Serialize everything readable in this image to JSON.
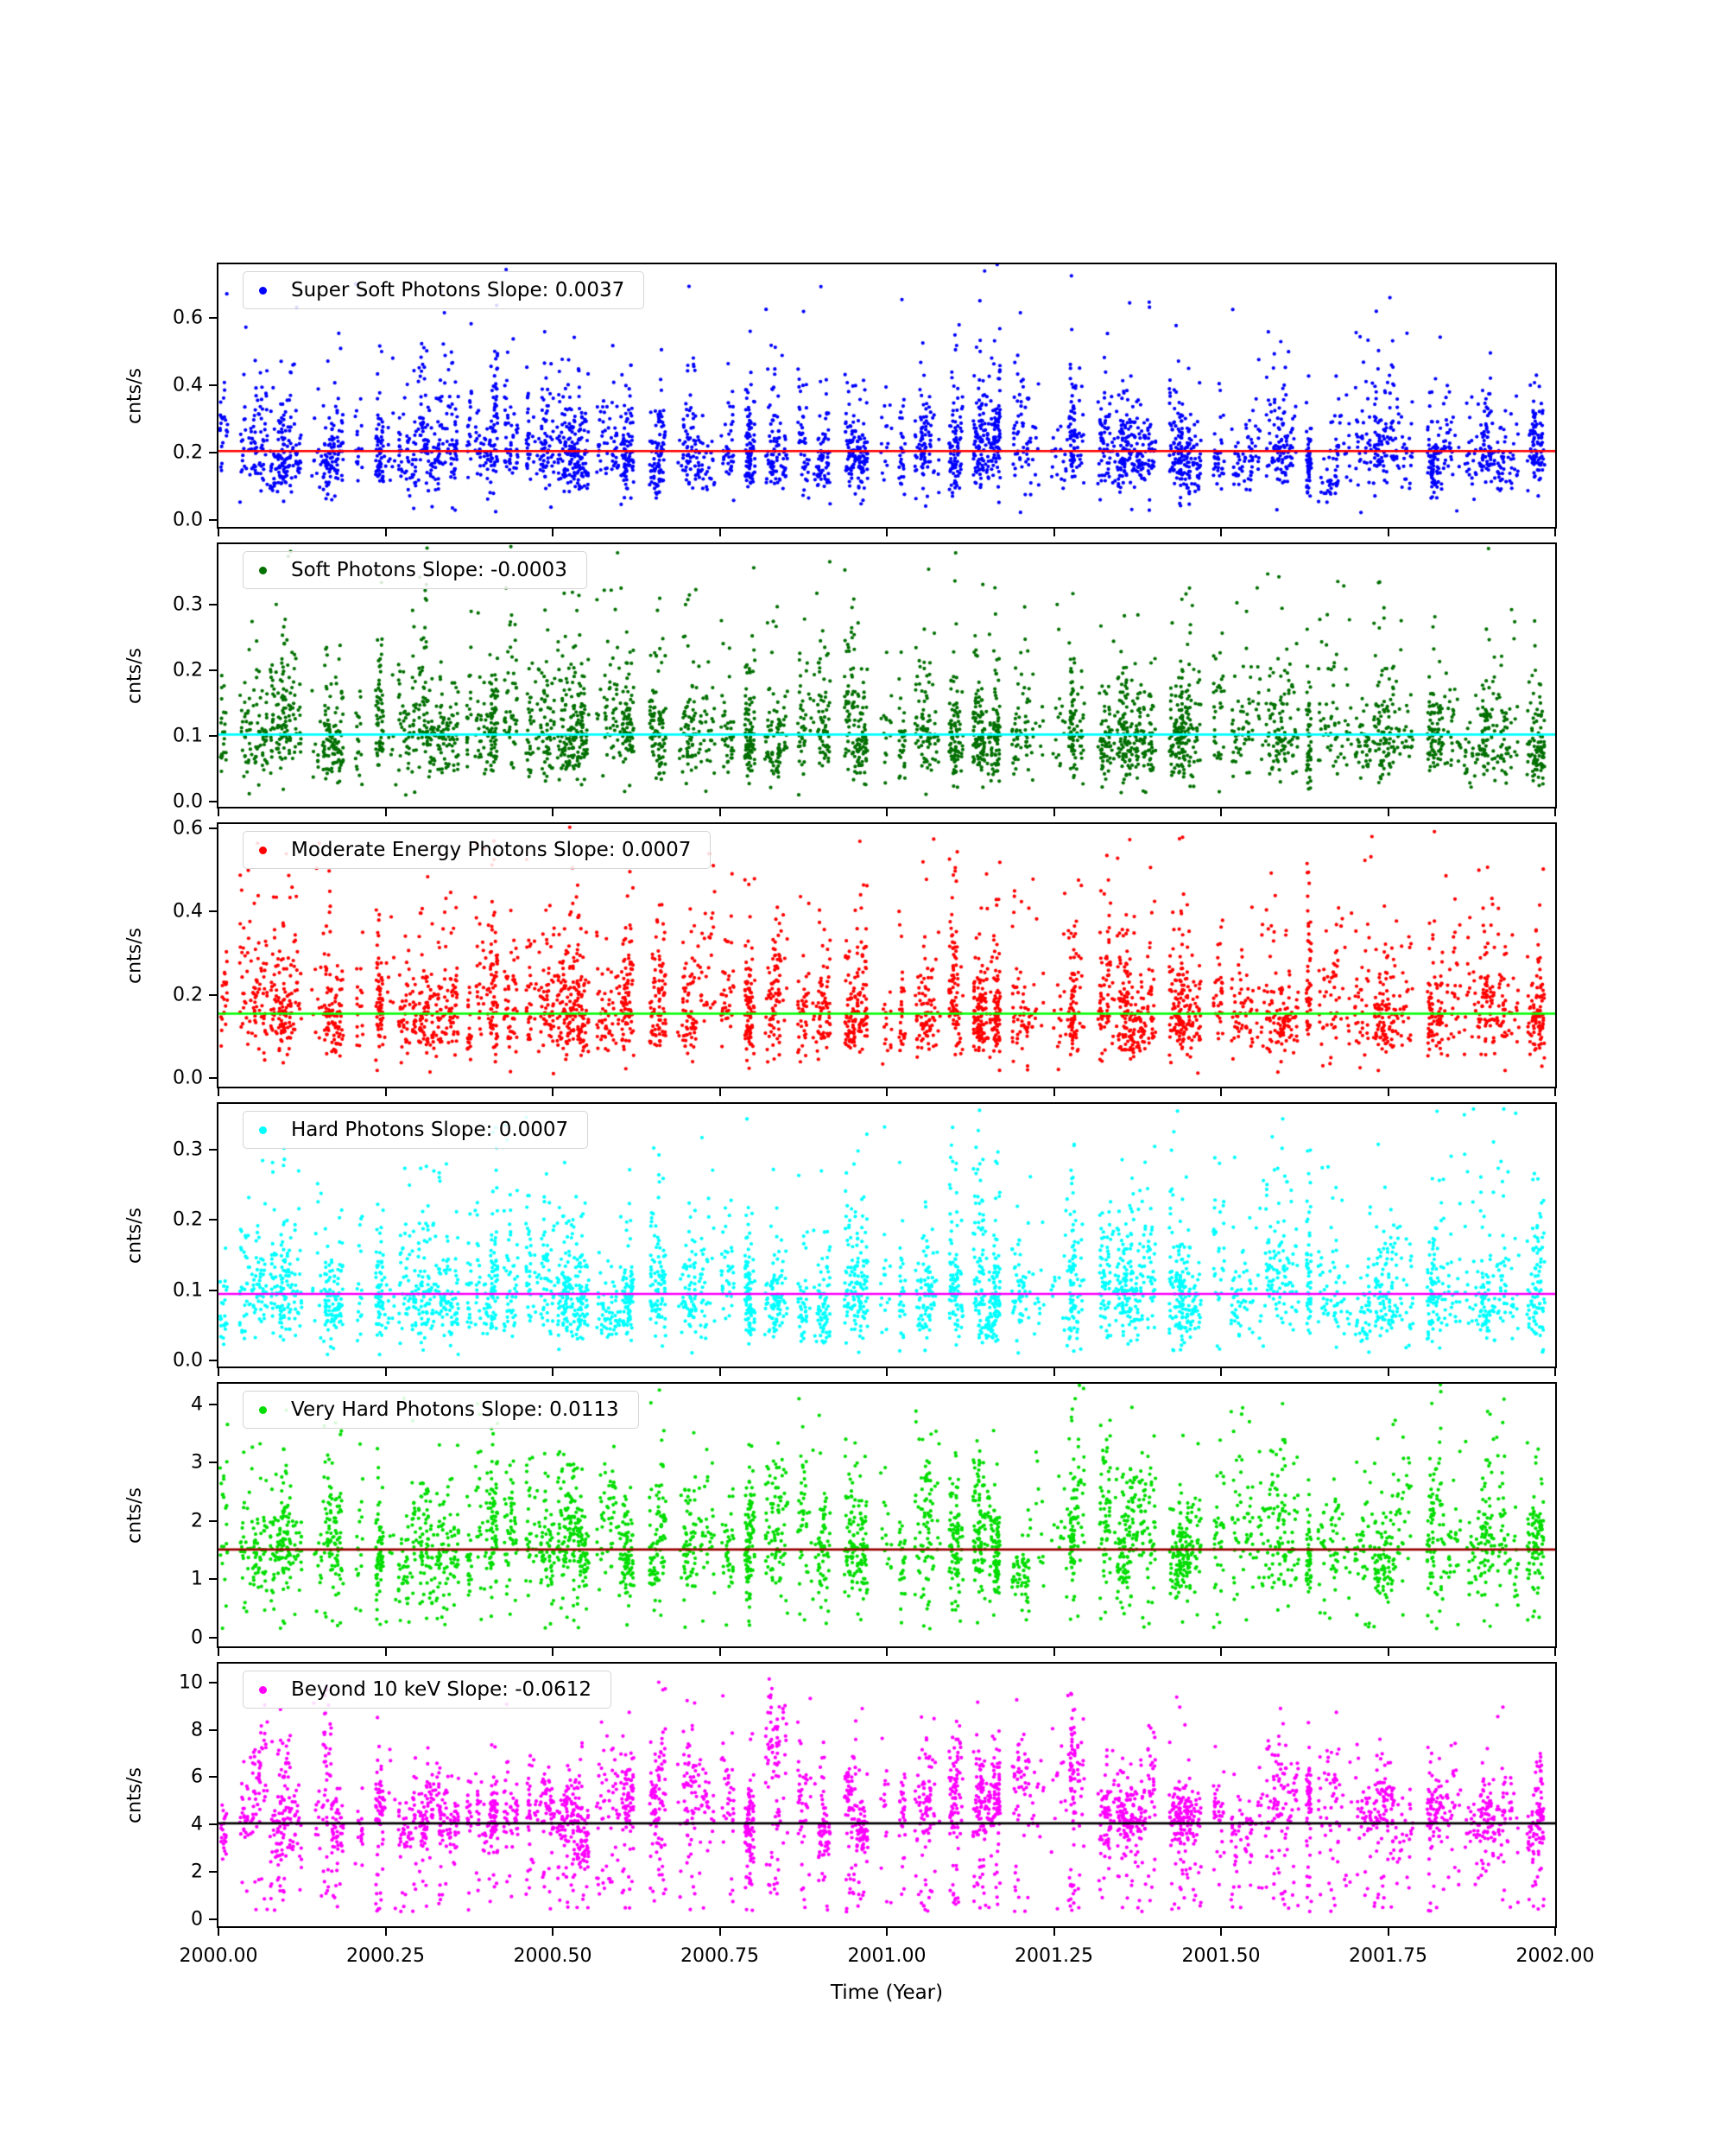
{
  "figure": {
    "background": "#ffffff"
  },
  "chart_meta": {
    "xlabel": "Time (Year)",
    "xlim": [
      2000.0,
      2002.0
    ],
    "xtick_values": [
      2000.0,
      2000.25,
      2000.5,
      2000.75,
      2001.0,
      2001.25,
      2001.5,
      2001.75,
      2002.0
    ],
    "xtick_labels": [
      "2000.00",
      "2000.25",
      "2000.50",
      "2000.75",
      "2001.00",
      "2001.25",
      "2001.50",
      "2001.75",
      "2002.00"
    ],
    "grid": false,
    "legend_position": "upper left",
    "seed": 1337
  },
  "chart_data": [
    {
      "type": "scatter",
      "title": "Super Soft Photons Slope: 0.0037",
      "series_name": "Super Soft Photons",
      "slope": 0.0037,
      "ylabel": "cnts/s",
      "marker_color": "#0000ff",
      "trend_color": "#ff0000",
      "trend_value": 0.205,
      "base": 0.21,
      "ylim": [
        -0.02,
        0.76
      ],
      "ytick_values": [
        0.0,
        0.2,
        0.4,
        0.6
      ],
      "ytick_labels": [
        "0.0",
        "0.2",
        "0.4",
        "0.6"
      ],
      "distribution": {
        "sigma": 0.33,
        "low_frac": 0.04,
        "low_min": 0.02,
        "tail_frac": 0.05,
        "tail_mult": 2.6
      }
    },
    {
      "type": "scatter",
      "title": "Soft Photons Slope: -0.0003",
      "series_name": "Soft Photons",
      "slope": -0.0003,
      "ylabel": "cnts/s",
      "marker_color": "#007000",
      "trend_color": "#00ffff",
      "trend_value": 0.102,
      "base": 0.105,
      "ylim": [
        -0.008,
        0.392
      ],
      "ytick_values": [
        0.0,
        0.1,
        0.2,
        0.3
      ],
      "ytick_labels": [
        "0.0",
        "0.1",
        "0.2",
        "0.3"
      ],
      "distribution": {
        "sigma": 0.4,
        "low_frac": 0.06,
        "low_min": 0.01,
        "tail_frac": 0.05,
        "tail_mult": 3.2
      }
    },
    {
      "type": "scatter",
      "title": "Moderate Energy Photons Slope: 0.0007",
      "series_name": "Moderate Energy Photons",
      "slope": 0.0007,
      "ylabel": "cnts/s",
      "marker_color": "#ff0000",
      "trend_color": "#00ff00",
      "trend_value": 0.155,
      "base": 0.16,
      "ylim": [
        -0.02,
        0.61
      ],
      "ytick_values": [
        0.0,
        0.2,
        0.4,
        0.6
      ],
      "ytick_labels": [
        "0.0",
        "0.2",
        "0.4",
        "0.6"
      ],
      "distribution": {
        "sigma": 0.4,
        "low_frac": 0.04,
        "low_min": 0.01,
        "tail_frac": 0.05,
        "tail_mult": 3.0
      }
    },
    {
      "type": "scatter",
      "title": "Hard Photons Slope: 0.0007",
      "series_name": "Hard Photons",
      "slope": 0.0007,
      "ylabel": "cnts/s",
      "marker_color": "#00ffff",
      "trend_color": "#ff00ff",
      "trend_value": 0.095,
      "base": 0.1,
      "ylim": [
        -0.008,
        0.365
      ],
      "ytick_values": [
        0.0,
        0.1,
        0.2,
        0.3
      ],
      "ytick_labels": [
        "0.0",
        "0.1",
        "0.2",
        "0.3"
      ],
      "distribution": {
        "sigma": 0.42,
        "low_frac": 0.05,
        "low_min": 0.008,
        "tail_frac": 0.05,
        "tail_mult": 3.0
      }
    },
    {
      "type": "scatter",
      "title": "Very Hard Photons Slope: 0.0113",
      "series_name": "Very Hard Photons",
      "slope": 0.0113,
      "ylabel": "cnts/s",
      "marker_color": "#00dd00",
      "trend_color": "#990000",
      "trend_value": 1.51,
      "base": 1.7,
      "ylim": [
        -0.15,
        4.35
      ],
      "ytick_values": [
        0,
        1,
        2,
        3,
        4
      ],
      "ytick_labels": [
        "0",
        "1",
        "2",
        "3",
        "4"
      ],
      "distribution": {
        "sigma": 0.28,
        "low_frac": 0.12,
        "low_min": 0.15,
        "tail_frac": 0.05,
        "tail_mult": 2.3
      }
    },
    {
      "type": "scatter",
      "title": "Beyond 10 keV Slope: -0.0612",
      "series_name": "Beyond 10 keV",
      "slope": -0.0612,
      "ylabel": "cnts/s",
      "marker_color": "#ff00ff",
      "trend_color": "#000000",
      "trend_value": 4.05,
      "base": 5.0,
      "ylim": [
        -0.3,
        10.8
      ],
      "ytick_values": [
        0,
        2,
        4,
        6,
        8,
        10
      ],
      "ytick_labels": [
        "0",
        "2",
        "4",
        "6",
        "8",
        "10"
      ],
      "distribution": {
        "sigma": 0.17,
        "low_frac": 0.28,
        "low_min": 0.3,
        "tail_frac": 0.02,
        "tail_mult": 1.9
      }
    }
  ]
}
